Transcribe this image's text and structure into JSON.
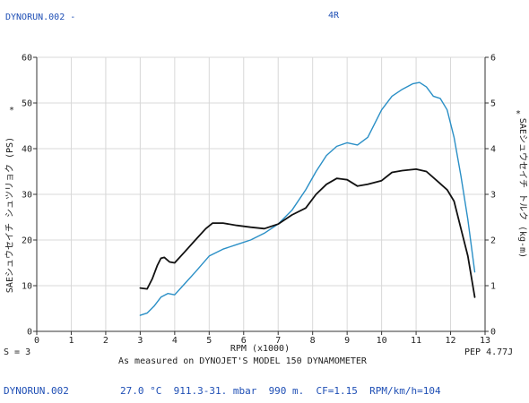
{
  "header": {
    "left": "DYNORUN.002 -",
    "center": "4R"
  },
  "chart_data": {
    "type": "line",
    "xlabel": "RPM (x1000)",
    "ylabel_left": "SAEシュウセイチ シュツリョク (PS)",
    "ylabel_right": "SAEシュウセイチ トルク (kg-m)",
    "left_marker": "*",
    "right_marker": "*",
    "xlim": [
      0,
      13
    ],
    "ylim_left": [
      0,
      60
    ],
    "ylim_right": [
      0,
      6
    ],
    "x_ticks": [
      "0",
      "1",
      "2",
      "3",
      "4",
      "5",
      "6",
      "7",
      "8",
      "9",
      "10",
      "11",
      "12",
      "13"
    ],
    "y_left_ticks": [
      "0",
      "10",
      "20",
      "30",
      "40",
      "50",
      "60"
    ],
    "y_right_ticks": [
      "0",
      "1",
      "2",
      "3",
      "4",
      "5",
      "6"
    ],
    "grid": true,
    "series": [
      {
        "color": "#2a8fc6",
        "axis": "left",
        "x": [
          3.0,
          3.2,
          3.4,
          3.6,
          3.8,
          4.0,
          4.3,
          4.6,
          5.0,
          5.4,
          5.8,
          6.2,
          6.6,
          7.0,
          7.4,
          7.8,
          8.1,
          8.4,
          8.7,
          9.0,
          9.3,
          9.6,
          10.0,
          10.3,
          10.6,
          10.9,
          11.1,
          11.3,
          11.5,
          11.7,
          11.9,
          12.1,
          12.3,
          12.5,
          12.7
        ],
        "y": [
          3.5,
          4.0,
          5.5,
          7.5,
          8.3,
          8.0,
          10.5,
          13.0,
          16.5,
          18.0,
          19.0,
          20.0,
          21.5,
          23.5,
          26.5,
          31.0,
          35.0,
          38.5,
          40.5,
          41.3,
          40.8,
          42.5,
          48.5,
          51.5,
          53.0,
          54.2,
          54.5,
          53.5,
          51.5,
          51.0,
          48.5,
          42.5,
          34.0,
          24.5,
          13.0
        ]
      },
      {
        "color": "#111111",
        "axis": "right",
        "x": [
          3.0,
          3.2,
          3.35,
          3.5,
          3.6,
          3.7,
          3.85,
          4.0,
          4.3,
          4.6,
          4.9,
          5.1,
          5.4,
          5.8,
          6.2,
          6.6,
          7.0,
          7.4,
          7.8,
          8.1,
          8.4,
          8.7,
          9.0,
          9.3,
          9.6,
          10.0,
          10.3,
          10.6,
          11.0,
          11.3,
          11.6,
          11.9,
          12.1,
          12.3,
          12.5,
          12.7
        ],
        "y": [
          0.95,
          0.93,
          1.15,
          1.45,
          1.6,
          1.62,
          1.52,
          1.5,
          1.75,
          2.0,
          2.25,
          2.37,
          2.37,
          2.32,
          2.28,
          2.25,
          2.35,
          2.55,
          2.7,
          3.0,
          3.22,
          3.35,
          3.32,
          3.18,
          3.22,
          3.3,
          3.48,
          3.52,
          3.55,
          3.5,
          3.3,
          3.1,
          2.85,
          2.25,
          1.65,
          0.75
        ]
      }
    ]
  },
  "left_note": "S = 3",
  "right_note": "PEP 4.77J",
  "caption": "As measured on DYNOJET'S MODEL 150 DYNAMOMETER",
  "footer": {
    "file": "DYNORUN.002",
    "conditions": "27.0 °C  911.3-31. mbar  990 m.  CF=1.15  RPM/km/h=104"
  }
}
